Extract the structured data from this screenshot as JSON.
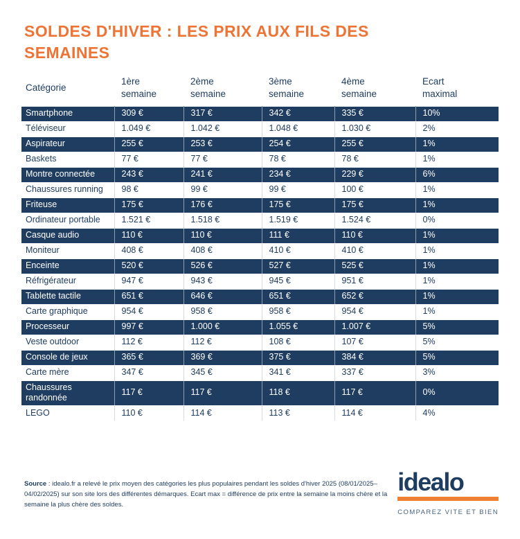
{
  "title": "SOLDES D'HIVER : LES PRIX AUX FILS DES SEMAINES",
  "colors": {
    "navy": "#1f3d60",
    "orange_title": "#ed7434",
    "logo_bar_orange": "#f08032",
    "column_separator": "#d4dae1"
  },
  "chart_data": {
    "type": "table",
    "title": "SOLDES D'HIVER : LES PRIX AUX FILS DES SEMAINES",
    "columns": [
      "Catégorie",
      "1ère\nsemaine",
      "2ème\nsemaine",
      "3ème\nsemaine",
      "4ème\nsemaine",
      "Ecart\nmaximal"
    ],
    "rows": [
      {
        "category": "Smartphone",
        "values": [
          "309 €",
          "317 €",
          "342 €",
          "335 €",
          "10%"
        ]
      },
      {
        "category": "Téléviseur",
        "values": [
          "1.049 €",
          "1.042 €",
          "1.048 €",
          "1.030 €",
          "2%"
        ]
      },
      {
        "category": "Aspirateur",
        "values": [
          "255 €",
          "253 €",
          "254 €",
          "255 €",
          "1%"
        ]
      },
      {
        "category": "Baskets",
        "values": [
          "77 €",
          "77 €",
          "78 €",
          "78 €",
          "1%"
        ]
      },
      {
        "category": "Montre connectée",
        "values": [
          "243 €",
          "241 €",
          "234 €",
          "229 €",
          "6%"
        ]
      },
      {
        "category": "Chaussures running",
        "values": [
          "98 €",
          "99 €",
          "99 €",
          "100 €",
          "1%"
        ]
      },
      {
        "category": "Friteuse",
        "values": [
          "175 €",
          "176 €",
          "175 €",
          "175 €",
          "1%"
        ]
      },
      {
        "category": "Ordinateur portable",
        "values": [
          "1.521 €",
          "1.518 €",
          "1.519 €",
          "1.524 €",
          "0%"
        ]
      },
      {
        "category": "Casque audio",
        "values": [
          "110 €",
          "110 €",
          "111 €",
          "110 €",
          "1%"
        ]
      },
      {
        "category": "Moniteur",
        "values": [
          "408 €",
          "408 €",
          "410 €",
          "410 €",
          "1%"
        ]
      },
      {
        "category": "Enceinte",
        "values": [
          "520 €",
          "526 €",
          "527 €",
          "525 €",
          "1%"
        ]
      },
      {
        "category": "Réfrigérateur",
        "values": [
          "947 €",
          "943 €",
          "945 €",
          "951 €",
          "1%"
        ]
      },
      {
        "category": "Tablette tactile",
        "values": [
          "651 €",
          "646 €",
          "651 €",
          "652 €",
          "1%"
        ]
      },
      {
        "category": "Carte graphique",
        "values": [
          "954 €",
          "958 €",
          "958 €",
          "954 €",
          "1%"
        ]
      },
      {
        "category": "Processeur",
        "values": [
          "997 €",
          "1.000 €",
          "1.055 €",
          "1.007 €",
          "5%"
        ]
      },
      {
        "category": "Veste outdoor",
        "values": [
          "112 €",
          "112 €",
          "108 €",
          "107 €",
          "5%"
        ]
      },
      {
        "category": "Console de jeux",
        "values": [
          "365 €",
          "369 €",
          "375 €",
          "384 €",
          "5%"
        ]
      },
      {
        "category": "Carte mère",
        "values": [
          "347 €",
          "345 €",
          "341 €",
          "337 €",
          "3%"
        ]
      },
      {
        "category": "Chaussures randonnée",
        "values": [
          "117 €",
          "117 €",
          "118 €",
          "117 €",
          "0%"
        ]
      },
      {
        "category": "LEGO",
        "values": [
          "110 €",
          "114 €",
          "113 €",
          "114 €",
          "4%"
        ]
      }
    ]
  },
  "footer": {
    "source_label": "Source",
    "source_text": " : idealo.fr a relevé le prix moyen des catégories les plus populaires pendant les soldes d'hiver 2025 (08/01/2025–04/02/2025) sur son site lors des différentes démarques. Ecart max = différence de prix entre la semaine la moins chère et la semaine la plus chère des soldes."
  },
  "logo": {
    "name": "idealo",
    "tagline": "COMPAREZ VITE ET BIEN"
  }
}
